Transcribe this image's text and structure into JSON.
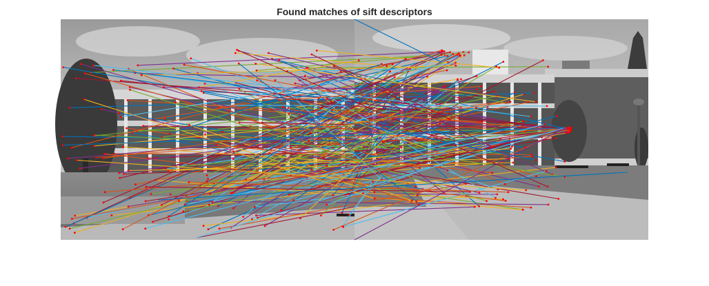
{
  "figure": {
    "title": "Found matches of sift descriptors"
  },
  "image_panel": {
    "description_icon": "photo-pair-icon",
    "panorama_left": "grayscale-building-photo-left",
    "panorama_right": "grayscale-building-photo-right"
  },
  "colors": {
    "match_palette": [
      "#0072BD",
      "#D95319",
      "#EDB120",
      "#7E2F8E",
      "#77AC30",
      "#4DBEEE",
      "#A2142F"
    ],
    "keypoint": "#ff0000"
  }
}
